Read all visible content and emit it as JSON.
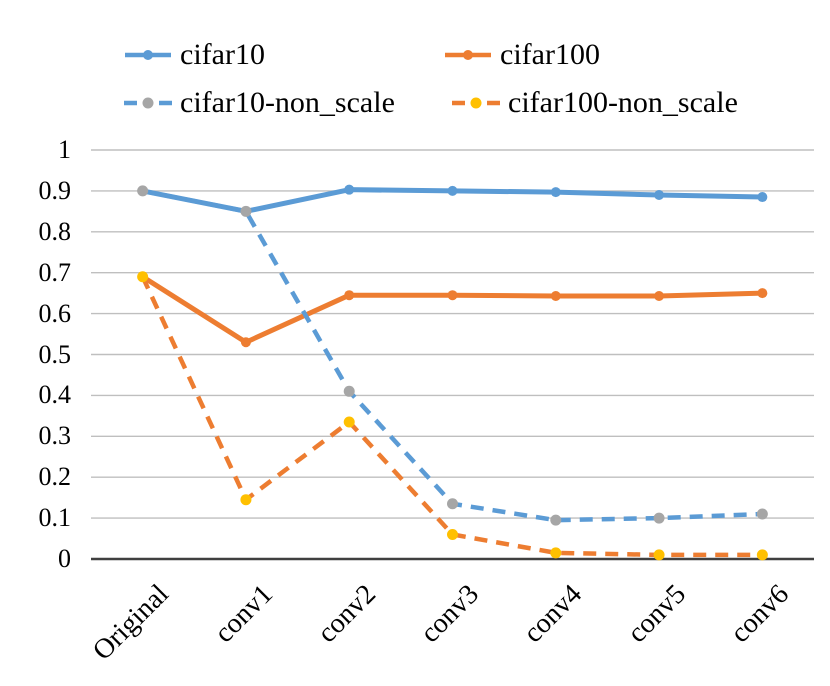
{
  "legend": {
    "items": [
      {
        "label": "cifar10"
      },
      {
        "label": "cifar100"
      },
      {
        "label": "cifar10-non_scale"
      },
      {
        "label": "cifar100-non_scale"
      }
    ]
  },
  "chart_data": {
    "type": "line",
    "categories": [
      "Original",
      "conv1",
      "conv2",
      "conv3",
      "conv4",
      "conv5",
      "conv6"
    ],
    "yticks": [
      "0",
      "0.1",
      "0.2",
      "0.3",
      "0.4",
      "0.5",
      "0.6",
      "0.7",
      "0.8",
      "0.9",
      "1"
    ],
    "ylim": [
      0,
      1
    ],
    "grid": true,
    "legend_position": "top",
    "series": [
      {
        "name": "cifar10",
        "style": "solid",
        "color": "#5B9BD5",
        "marker_color": "#5B9BD5",
        "values": [
          0.9,
          0.85,
          0.903,
          0.9,
          0.897,
          0.89,
          0.885
        ]
      },
      {
        "name": "cifar100",
        "style": "solid",
        "color": "#ED7D31",
        "marker_color": "#ED7D31",
        "values": [
          0.69,
          0.53,
          0.645,
          0.645,
          0.643,
          0.643,
          0.65
        ]
      },
      {
        "name": "cifar10-non_scale",
        "style": "dashed",
        "color": "#5B9BD5",
        "marker_color": "#A6A6A6",
        "values": [
          0.9,
          0.85,
          0.41,
          0.135,
          0.095,
          0.1,
          0.11
        ]
      },
      {
        "name": "cifar100-non_scale",
        "style": "dashed",
        "color": "#ED7D31",
        "marker_color": "#FFC000",
        "values": [
          0.69,
          0.145,
          0.335,
          0.06,
          0.015,
          0.01,
          0.01
        ]
      }
    ],
    "axis_color": "#404040",
    "grid_color": "#BFBFBF",
    "text_color": "#000000"
  }
}
